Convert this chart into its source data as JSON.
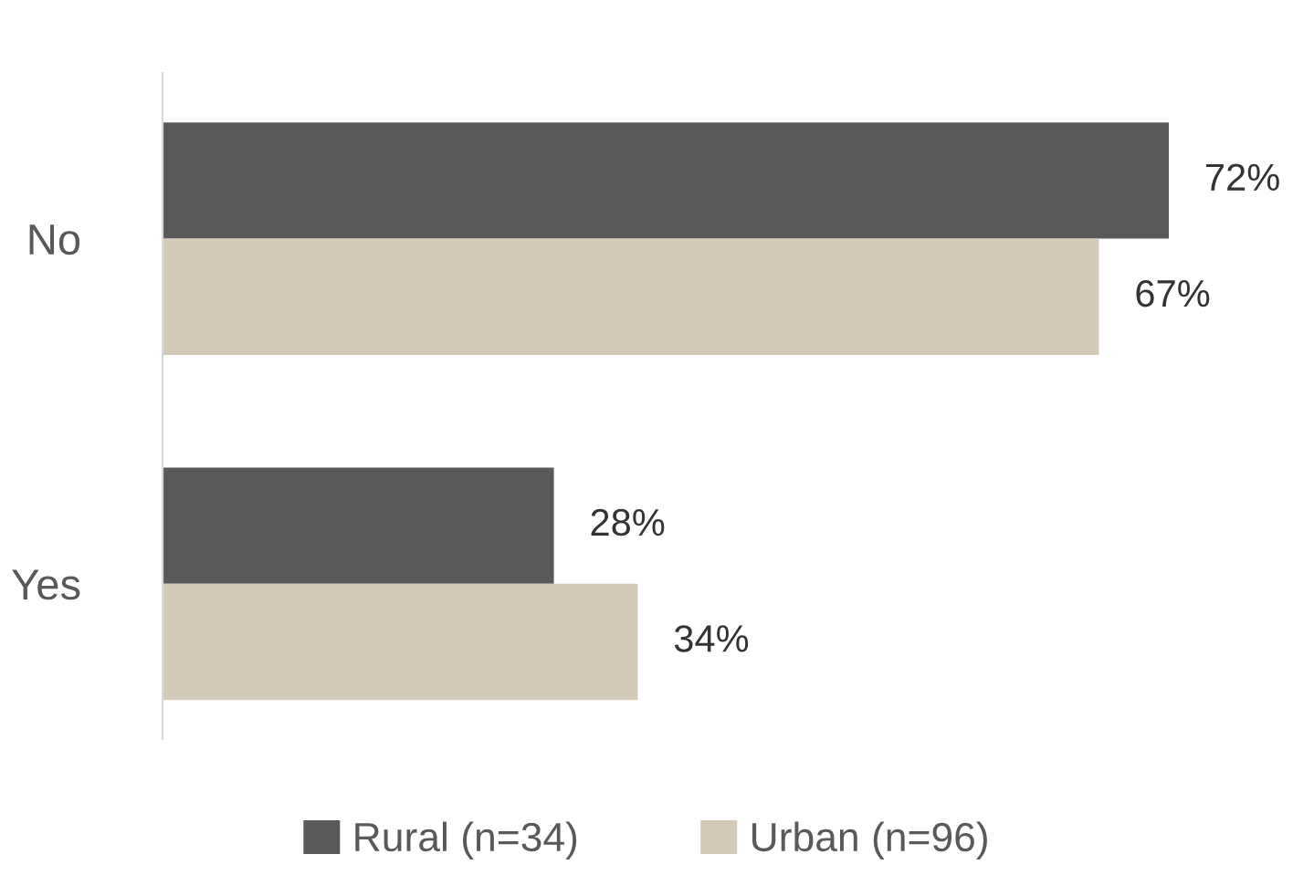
{
  "chart_data": {
    "type": "bar",
    "orientation": "horizontal",
    "categories": [
      "No",
      "Yes"
    ],
    "series": [
      {
        "name": "Rural (n=34)",
        "color": "#595959",
        "values": [
          72,
          28
        ],
        "value_labels": [
          "72%",
          "28%"
        ]
      },
      {
        "name": "Urban (n=96)",
        "color": "#d3cbb8",
        "values": [
          67,
          34
        ],
        "value_labels": [
          "67%",
          "34%"
        ]
      }
    ],
    "legend": "bottom",
    "grid": false,
    "tick_labels": "y"
  }
}
